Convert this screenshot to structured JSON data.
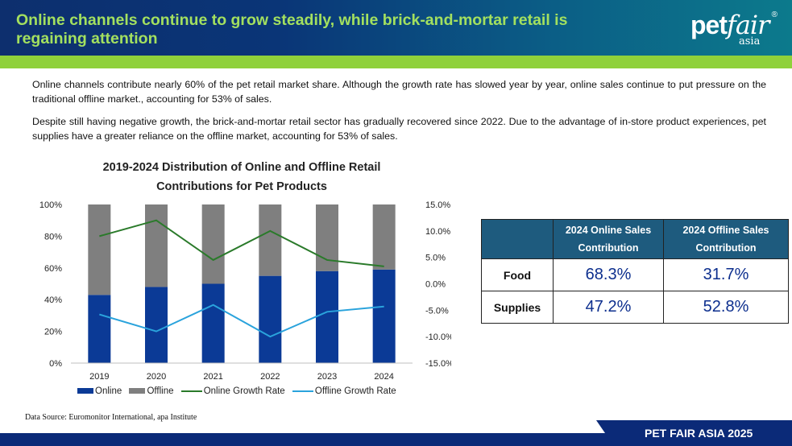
{
  "header": {
    "title": "Online channels continue to grow steadily, while brick-and-mortar retail is regaining attention",
    "logo": {
      "main_a": "pet",
      "main_b": "fair",
      "sub": "asia",
      "reg": "®"
    }
  },
  "paragraphs": [
    "Online channels contribute nearly 60% of the pet retail market share. Although the growth rate has slowed year by year, online sales continue to put pressure on the traditional offline market., accounting for 53% of sales.",
    "Despite still having negative growth, the brick-and-mortar retail sector has gradually recovered since 2022. Due to the advantage of in-store product experiences, pet supplies have a greater reliance on the offline market, accounting for 53% of sales."
  ],
  "chart_data": {
    "type": "bar",
    "title": "2019-2024 Distribution of Online and Offline Retail Contributions for Pet Products",
    "categories": [
      "2019",
      "2020",
      "2021",
      "2022",
      "2023",
      "2024"
    ],
    "series": [
      {
        "name": "Online",
        "kind": "bar",
        "axis": "left",
        "values": [
          43,
          48,
          50,
          55,
          58,
          59
        ],
        "color": "#0b3a96"
      },
      {
        "name": "Offline",
        "kind": "bar",
        "axis": "left",
        "values": [
          57,
          52,
          50,
          45,
          42,
          41
        ],
        "color": "#7f7f7f"
      },
      {
        "name": "Online Growth Rate",
        "kind": "line",
        "axis": "right",
        "values": [
          9.0,
          12.0,
          4.5,
          10.0,
          4.5,
          3.3
        ],
        "color": "#2a7a2a"
      },
      {
        "name": "Offline Growth Rate",
        "kind": "line",
        "axis": "right",
        "values": [
          -5.8,
          -9.0,
          -4.0,
          -10.0,
          -5.3,
          -4.3
        ],
        "color": "#2aa3dc"
      }
    ],
    "y_left": {
      "ticks": [
        "0%",
        "20%",
        "40%",
        "60%",
        "80%",
        "100%"
      ],
      "ylim": [
        0,
        100
      ]
    },
    "y_right": {
      "ticks": [
        "-15.0%",
        "-10.0%",
        "-5.0%",
        "0.0%",
        "5.0%",
        "10.0%",
        "15.0%"
      ],
      "ylim": [
        -15,
        15
      ]
    },
    "grid": false,
    "legend": "bottom",
    "stacked": true
  },
  "table": {
    "headers": [
      "",
      "2024 Online Sales Contribution",
      "2024 Offline Sales Contribution"
    ],
    "rows": [
      {
        "label": "Food",
        "online": "68.3%",
        "offline": "31.7%"
      },
      {
        "label": "Supplies",
        "online": "47.2%",
        "offline": "52.8%"
      }
    ]
  },
  "source": "Data Source: Euromonitor International, apa Institute",
  "footer": "PET FAIR ASIA 2025"
}
